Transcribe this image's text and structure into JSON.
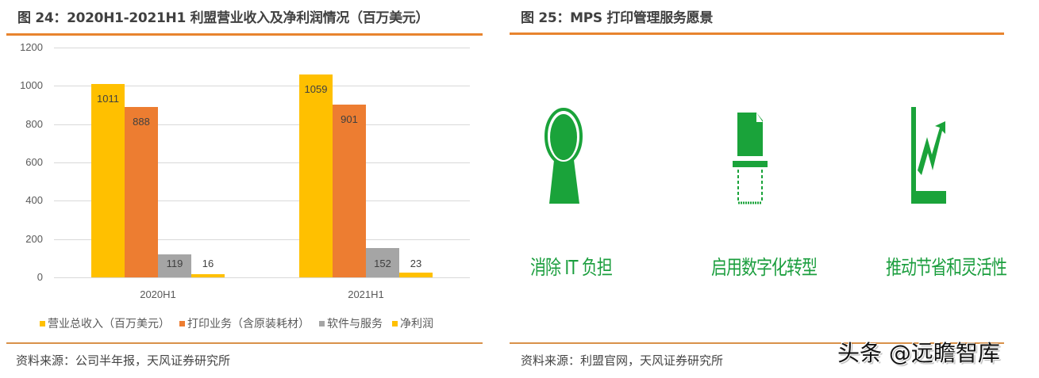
{
  "figure24": {
    "title": "图 24：2020H1-2021H1 利盟营业收入及净利润情况（百万美元）",
    "source": "资料来源：公司半年报，天风证券研究所"
  },
  "figure25": {
    "title": "图 25：MPS 打印管理服务愿景",
    "source": "资料来源：利盟官网，天风证券研究所",
    "items": [
      {
        "icon": "headset-person-icon",
        "label": "消除 IT 负担"
      },
      {
        "icon": "document-scan-icon",
        "label": "启用数字化转型"
      },
      {
        "icon": "growth-chart-icon",
        "label": "推动节省和灵活性"
      }
    ],
    "accent_color": "#1AA33A"
  },
  "watermark": "头条 @远瞻智库",
  "chart_data": {
    "type": "bar",
    "title": "2020H1-2021H1 利盟营业收入及净利润情况（百万美元）",
    "categories": [
      "2020H1",
      "2021H1"
    ],
    "series": [
      {
        "name": "营业总收入（百万美元）",
        "values": [
          1011,
          1059
        ],
        "color": "#FFC000"
      },
      {
        "name": "打印业务（含原装耗材）",
        "values": [
          888,
          901
        ],
        "color": "#ED7D31"
      },
      {
        "name": "软件与服务",
        "values": [
          119,
          152
        ],
        "color": "#A5A5A5"
      },
      {
        "name": "净利润",
        "values": [
          16,
          23
        ],
        "color": "#FFC000"
      }
    ],
    "yticks": [
      "0",
      "200",
      "400",
      "600",
      "800",
      "1000",
      "1200"
    ],
    "ylim": [
      0,
      1200
    ],
    "xlabel": "",
    "ylabel": "",
    "grid": true,
    "legend_position": "bottom"
  }
}
